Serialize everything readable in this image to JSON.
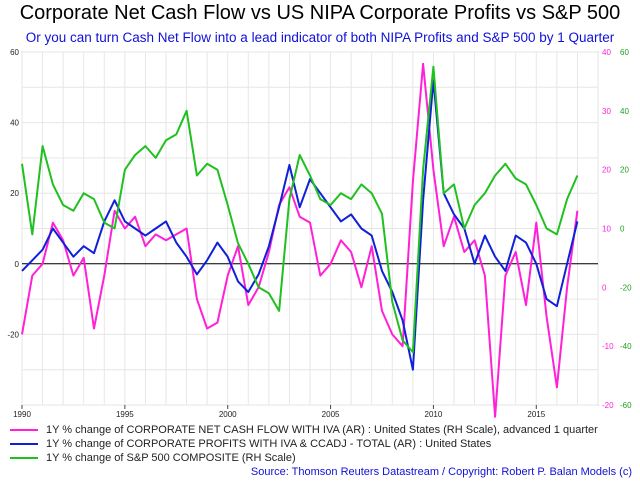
{
  "title": "Corporate Net Cash Flow vs US NIPA Corporate Profits vs S&P 500",
  "subtitle": "Or you can turn Cash Net Flow into a lead indicator of both NIPA Profits and S&P 500 by 1 Quarter",
  "source": "Source: Thomson Reuters Datastream / Copyright: Robert P. Balan Models (c)",
  "colors": {
    "cash_flow": "#ff20d8",
    "profits": "#1020d8",
    "sp500": "#20c020",
    "grid": "#e6e6e6",
    "zero": "#000000"
  },
  "legend": [
    {
      "label": "1Y % change of CORPORATE NET CASH FLOW WITH IVA (AR) : United States (RH Scale), advanced 1 quarter",
      "color": "#ff20d8"
    },
    {
      "label": "1Y % change of CORPORATE PROFITS WITH IVA & CCADJ - TOTAL (AR) : United States",
      "color": "#1020d8"
    },
    {
      "label": "1Y % change of S&P 500 COMPOSITE (RH Scale)",
      "color": "#20c020"
    }
  ],
  "chart_data": {
    "type": "line",
    "title": "Corporate Net Cash Flow vs US NIPA Corporate Profits vs S&P 500",
    "subtitle": "Or you can turn Cash Net Flow into a lead indicator of both NIPA Profits and S&P 500 by 1 Quarter",
    "grid": true,
    "legend_position": "bottom",
    "x_ticks": [
      "1990",
      "1995",
      "2000",
      "2005",
      "2010",
      "2015"
    ],
    "xlim": [
      1990,
      2018
    ],
    "axes": {
      "left": {
        "ylim": [
          -40,
          60
        ],
        "ticks": [
          "-20",
          "0",
          "20",
          "40",
          "60"
        ]
      },
      "right_pink": {
        "ylim": [
          -20,
          40
        ],
        "ticks": [
          "-20",
          "-10",
          "0",
          "10",
          "20",
          "30",
          "40"
        ],
        "color": "#ff20d8"
      },
      "right_green": {
        "ylim": [
          -60,
          60
        ],
        "ticks": [
          "-60",
          "-40",
          "-20",
          "0",
          "20",
          "40",
          "60"
        ],
        "color": "#20a020"
      }
    },
    "series": [
      {
        "name": "1Y % change of CORPORATE NET CASH FLOW WITH IVA (AR) : United States (RH Scale), advanced 1 quarter",
        "axis": "right_pink",
        "color": "#ff20d8",
        "x": [
          1990,
          1990.5,
          1991,
          1991.5,
          1992,
          1992.5,
          1993,
          1993.5,
          1994,
          1994.5,
          1995,
          1995.5,
          1996,
          1996.5,
          1997,
          1997.5,
          1998,
          1998.5,
          1999,
          1999.5,
          2000,
          2000.5,
          2001,
          2001.5,
          2002,
          2002.5,
          2003,
          2003.5,
          2004,
          2004.5,
          2005,
          2005.5,
          2006,
          2006.5,
          2007,
          2007.5,
          2008,
          2008.5,
          2009,
          2009.5,
          2010,
          2010.5,
          2011,
          2011.5,
          2012,
          2012.5,
          2013,
          2013.5,
          2014,
          2014.5,
          2015,
          2015.5,
          2016,
          2016.5,
          2017
        ],
        "y": [
          -8,
          2,
          4,
          11,
          8,
          2,
          5,
          -7,
          2,
          13,
          10,
          12,
          7,
          9,
          8,
          9,
          10,
          -2,
          -7,
          -6,
          2,
          7,
          -3,
          0,
          6,
          14,
          17,
          12,
          11,
          2,
          4,
          8,
          6,
          0,
          7,
          -4,
          -8,
          -10,
          18,
          38,
          20,
          7,
          12,
          6,
          8,
          2,
          -22,
          2,
          6,
          -3,
          11,
          -5,
          -17,
          0,
          13
        ]
      },
      {
        "name": "1Y % change of CORPORATE PROFITS WITH IVA & CCADJ - TOTAL (AR) : United States",
        "axis": "left",
        "color": "#1020d8",
        "x": [
          1990,
          1990.5,
          1991,
          1991.5,
          1992,
          1992.5,
          1993,
          1993.5,
          1994,
          1994.5,
          1995,
          1995.5,
          1996,
          1996.5,
          1997,
          1997.5,
          1998,
          1998.5,
          1999,
          1999.5,
          2000,
          2000.5,
          2001,
          2001.5,
          2002,
          2002.5,
          2003,
          2003.5,
          2004,
          2004.5,
          2005,
          2005.5,
          2006,
          2006.5,
          2007,
          2007.5,
          2008,
          2008.5,
          2009,
          2009.5,
          2010,
          2010.5,
          2011,
          2011.5,
          2012,
          2012.5,
          2013,
          2013.5,
          2014,
          2014.5,
          2015,
          2015.5,
          2016,
          2016.5,
          2017
        ],
        "y": [
          -2,
          1,
          4,
          10,
          6,
          2,
          5,
          3,
          12,
          18,
          12,
          10,
          8,
          10,
          12,
          6,
          2,
          -3,
          1,
          6,
          2,
          -5,
          -8,
          -3,
          5,
          16,
          28,
          16,
          24,
          20,
          16,
          12,
          14,
          10,
          8,
          -2,
          -8,
          -16,
          -30,
          18,
          52,
          20,
          14,
          10,
          0,
          8,
          2,
          -2,
          8,
          6,
          0,
          -10,
          -12,
          0,
          12
        ]
      },
      {
        "name": "1Y % change of S&P 500 COMPOSITE (RH Scale)",
        "axis": "right_green",
        "color": "#20c020",
        "x": [
          1990,
          1990.5,
          1991,
          1991.5,
          1992,
          1992.5,
          1993,
          1993.5,
          1994,
          1994.5,
          1995,
          1995.5,
          1996,
          1996.5,
          1997,
          1997.5,
          1998,
          1998.5,
          1999,
          1999.5,
          2000,
          2000.5,
          2001,
          2001.5,
          2002,
          2002.5,
          2003,
          2003.5,
          2004,
          2004.5,
          2005,
          2005.5,
          2006,
          2006.5,
          2007,
          2007.5,
          2008,
          2008.5,
          2009,
          2009.5,
          2010,
          2010.5,
          2011,
          2011.5,
          2012,
          2012.5,
          2013,
          2013.5,
          2014,
          2014.5,
          2015,
          2015.5,
          2016,
          2016.5,
          2017
        ],
        "y": [
          22,
          -2,
          28,
          15,
          8,
          6,
          12,
          10,
          2,
          0,
          20,
          25,
          28,
          24,
          30,
          32,
          40,
          18,
          22,
          20,
          8,
          -5,
          -12,
          -20,
          -22,
          -28,
          10,
          25,
          18,
          10,
          8,
          12,
          10,
          15,
          12,
          5,
          -25,
          -38,
          -42,
          20,
          55,
          12,
          15,
          0,
          8,
          12,
          18,
          22,
          17,
          15,
          8,
          0,
          -2,
          10,
          18
        ]
      }
    ]
  }
}
